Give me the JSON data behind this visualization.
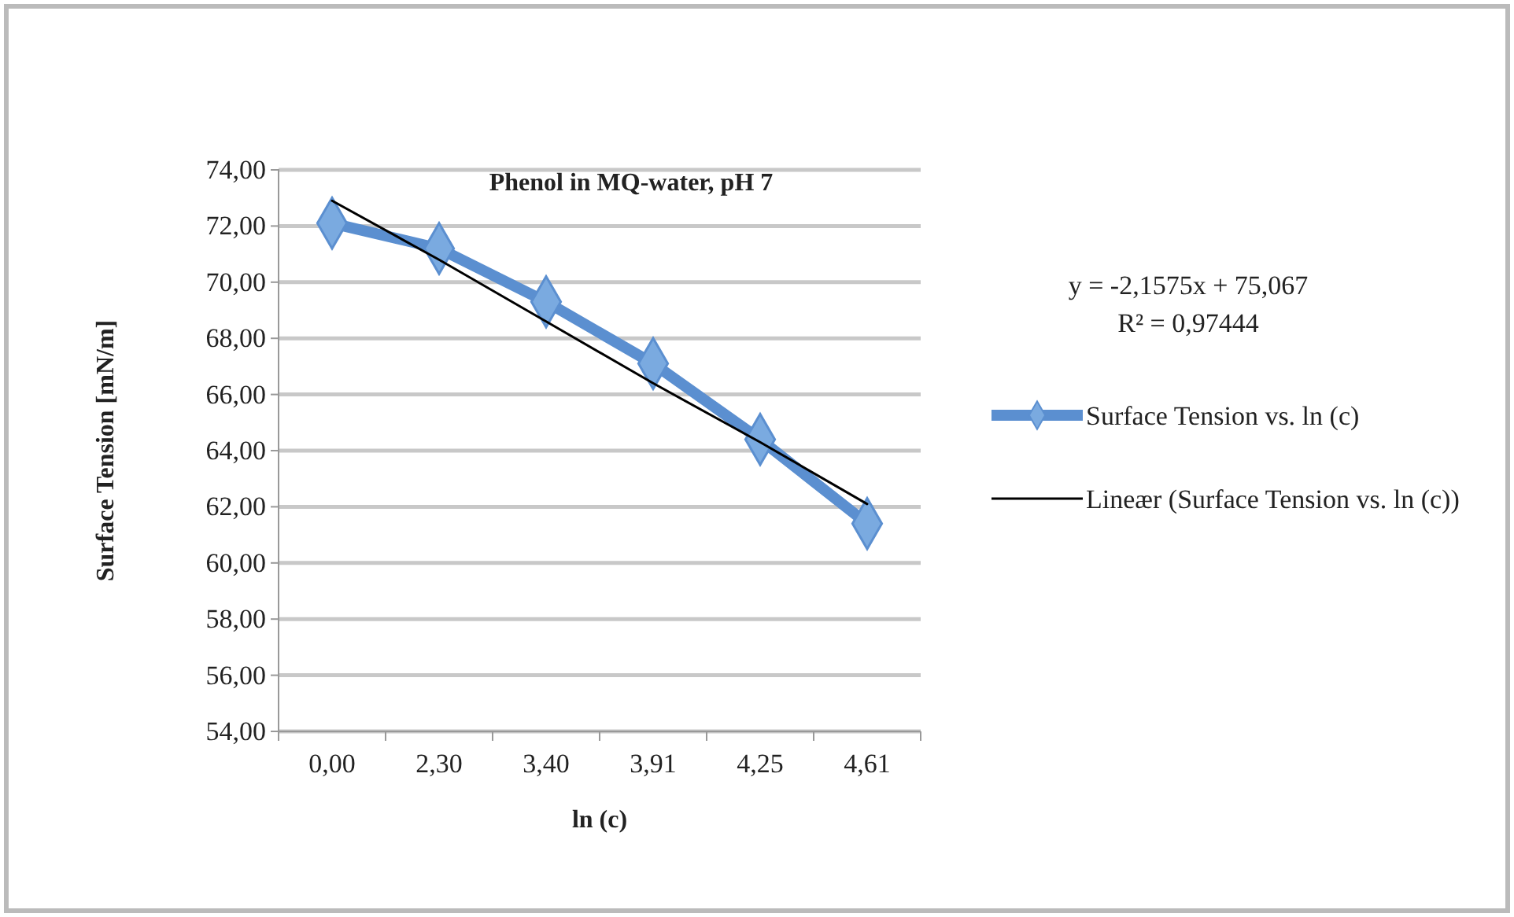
{
  "chart_data": {
    "type": "line",
    "title": "Phenol in MQ-water, pH 7",
    "xlabel": "ln (c)",
    "ylabel": "Surface Tension [mN/m]",
    "categories": [
      "0,00",
      "2,30",
      "3,40",
      "3,91",
      "4,25",
      "4,61"
    ],
    "ylim": [
      54,
      74
    ],
    "yticks": [
      {
        "value": 54,
        "label": "54,00"
      },
      {
        "value": 56,
        "label": "56,00"
      },
      {
        "value": 58,
        "label": "58,00"
      },
      {
        "value": 60,
        "label": "60,00"
      },
      {
        "value": 62,
        "label": "62,00"
      },
      {
        "value": 64,
        "label": "64,00"
      },
      {
        "value": 66,
        "label": "66,00"
      },
      {
        "value": 68,
        "label": "68,00"
      },
      {
        "value": 70,
        "label": "70,00"
      },
      {
        "value": 72,
        "label": "72,00"
      },
      {
        "value": 74,
        "label": "74,00"
      }
    ],
    "grid": "y",
    "legend": "right",
    "series": [
      {
        "name": "Surface Tension vs. ln (c)",
        "color": "#5b8fd0",
        "marker": "diamond",
        "values": [
          72.1,
          71.2,
          69.3,
          67.1,
          64.4,
          61.4
        ]
      },
      {
        "name": "Lineær (Surface Tension vs. ln (c))",
        "color": "#000000",
        "marker": "none",
        "line_style": "solid",
        "values": [
          72.9,
          70.8,
          68.6,
          66.4,
          64.3,
          62.1
        ]
      }
    ],
    "annotations": [
      "y = -2,1575x + 75,067",
      "R² = 0,97444"
    ]
  }
}
